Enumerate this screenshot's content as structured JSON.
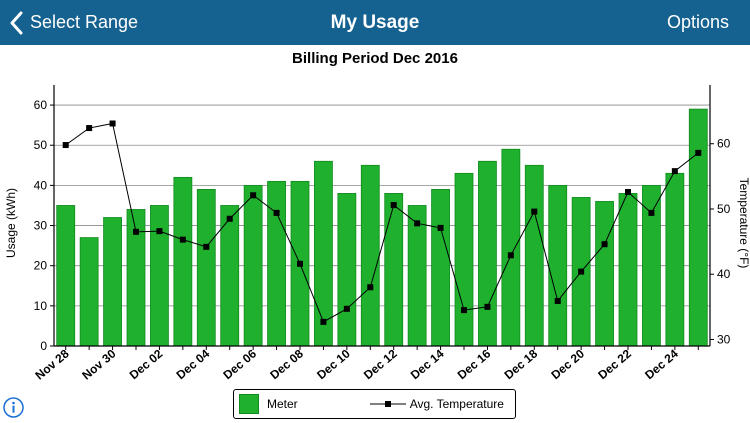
{
  "nav": {
    "back_label": "Select Range",
    "title": "My Usage",
    "options_label": "Options"
  },
  "icons": {
    "back": "chevron-left-icon",
    "info": "info-icon"
  },
  "colors": {
    "navbar": "#156190",
    "bar_fill": "#1fb12e",
    "bar_border": "#118a1e",
    "temperature_line": "#000000"
  },
  "chart_data": {
    "type": "bar",
    "title": "Billing Period Dec 2016",
    "ylabel": "Usage (kWh)",
    "y2label": "Temperature (°F)",
    "ylim": [
      0,
      65
    ],
    "y2lim": [
      29,
      69
    ],
    "yticks": [
      0,
      10,
      20,
      30,
      40,
      50,
      60
    ],
    "y2ticks": [
      30,
      40,
      50,
      60
    ],
    "grid": true,
    "legend_position": "bottom-center",
    "categories": [
      "Nov 28",
      "Nov 29",
      "Nov 30",
      "Dec 01",
      "Dec 02",
      "Dec 03",
      "Dec 04",
      "Dec 05",
      "Dec 06",
      "Dec 07",
      "Dec 08",
      "Dec 09",
      "Dec 10",
      "Dec 11",
      "Dec 12",
      "Dec 13",
      "Dec 14",
      "Dec 15",
      "Dec 16",
      "Dec 17",
      "Dec 18",
      "Dec 19",
      "Dec 20",
      "Dec 21",
      "Dec 22",
      "Dec 23",
      "Dec 24",
      "Dec 25"
    ],
    "xticklabels": [
      "Nov 28",
      "Nov 30",
      "Dec 02",
      "Dec 04",
      "Dec 06",
      "Dec 08",
      "Dec 10",
      "Dec 12",
      "Dec 14",
      "Dec 16",
      "Dec 18",
      "Dec 20",
      "Dec 22",
      "Dec 24"
    ],
    "series": [
      {
        "name": "Meter",
        "type": "bar",
        "axis": "left",
        "values": [
          35,
          27,
          32,
          34,
          35,
          42,
          39,
          35,
          40,
          41,
          41,
          46,
          38,
          45,
          38,
          35,
          39,
          43,
          46,
          49,
          45,
          40,
          37,
          36,
          38,
          40,
          43,
          59
        ]
      },
      {
        "name": "Avg. Temperature",
        "type": "line",
        "axis": "right",
        "values": [
          59.8,
          62.4,
          63.1,
          46.5,
          46.6,
          45.3,
          44.2,
          48.5,
          52.1,
          49.4,
          41.6,
          32.7,
          34.7,
          38.0,
          50.6,
          47.8,
          47.1,
          34.5,
          35.0,
          42.9,
          49.6,
          35.9,
          40.4,
          44.6,
          52.6,
          49.4,
          55.8,
          58.6
        ]
      }
    ]
  }
}
